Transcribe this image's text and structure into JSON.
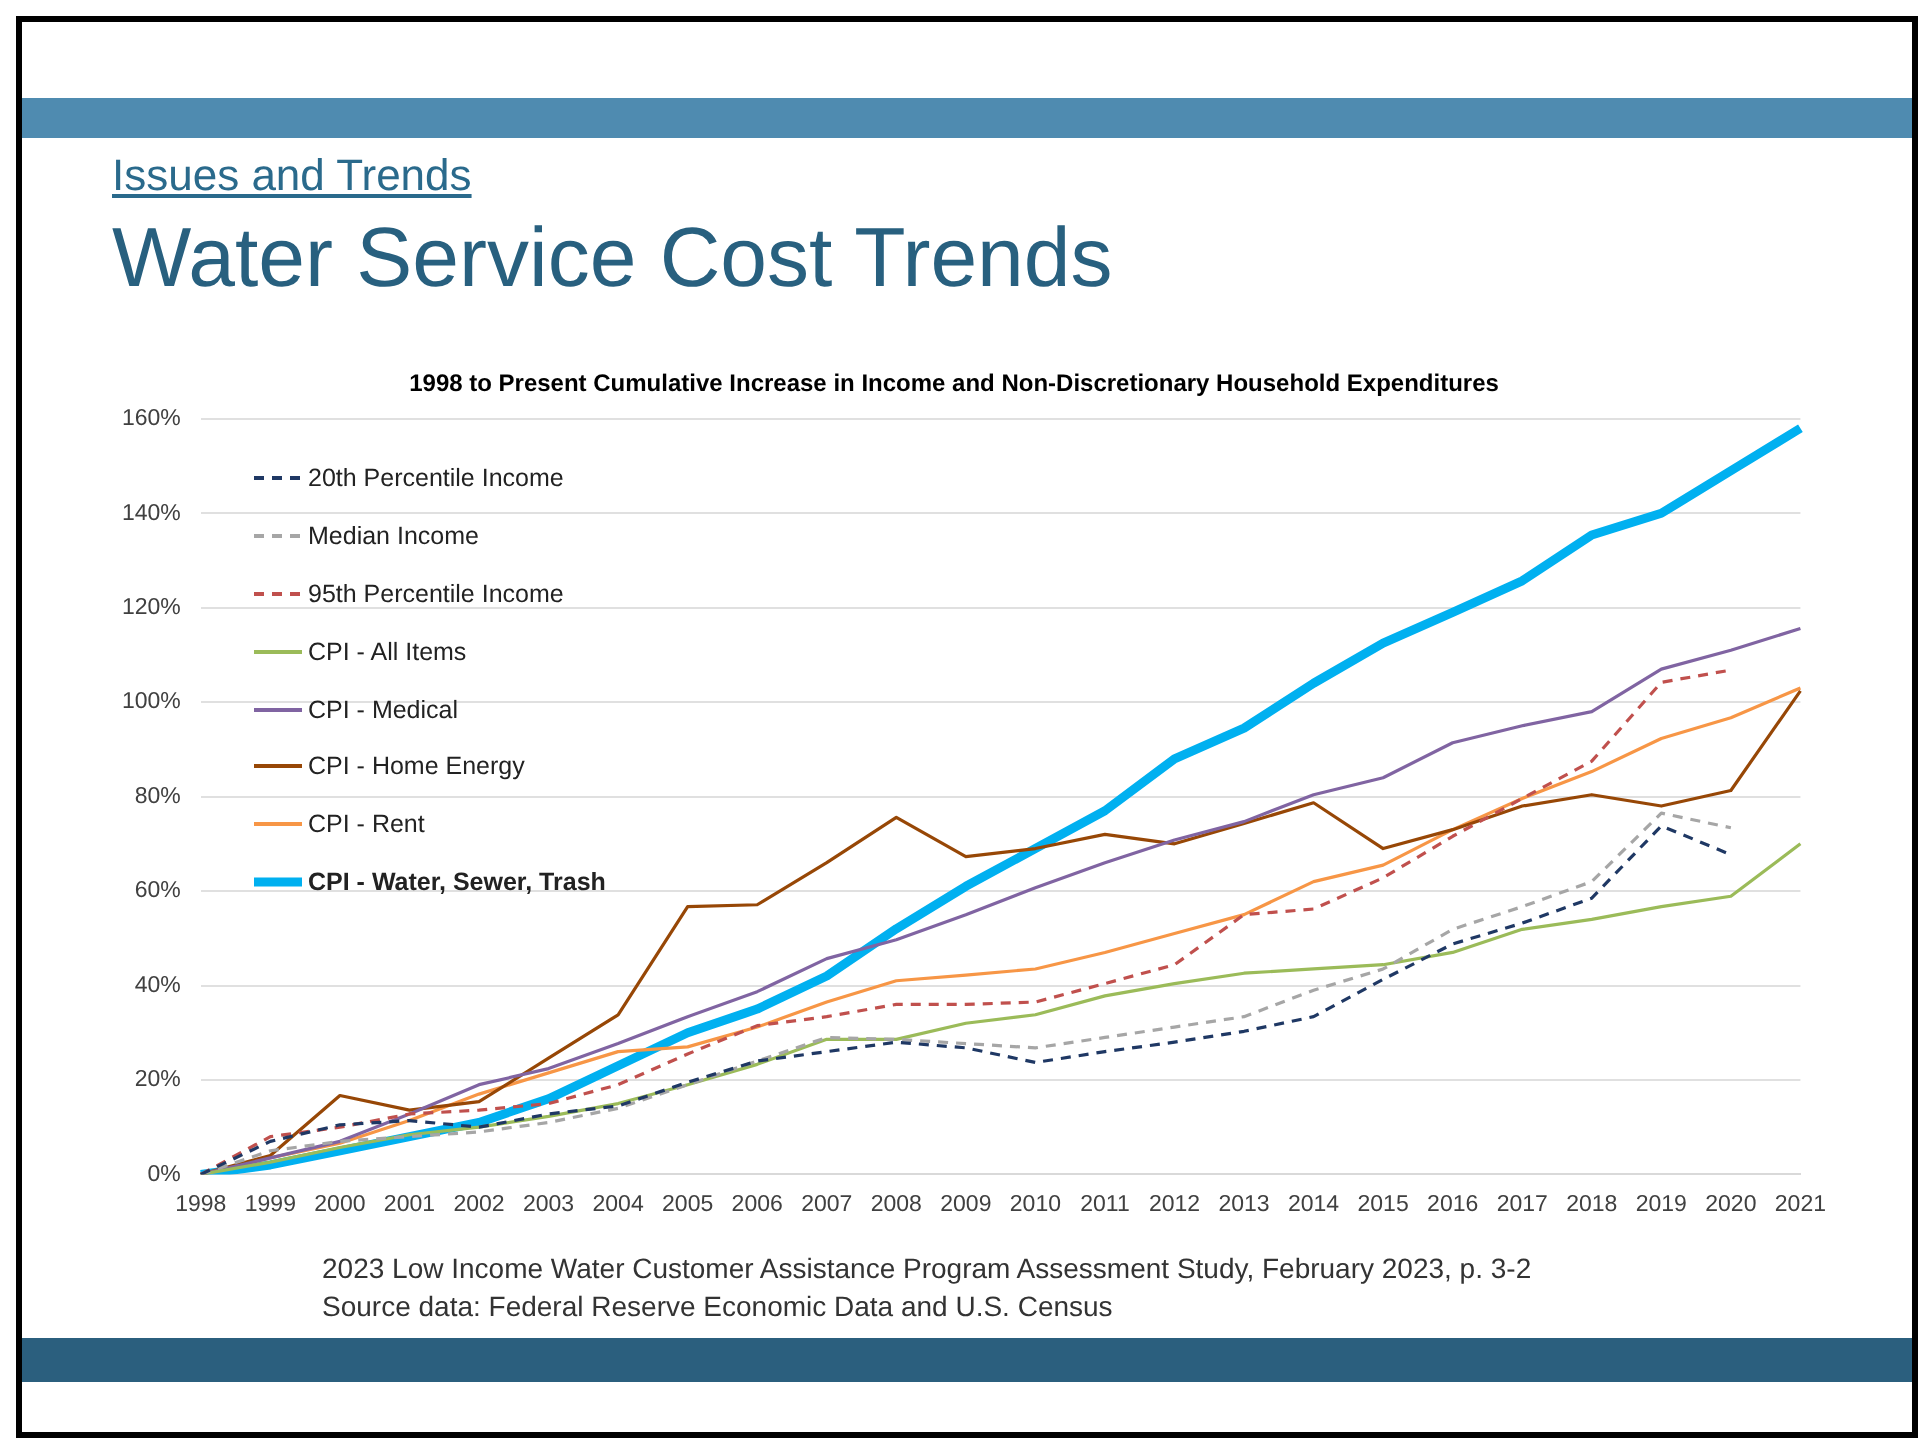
{
  "chart_data": {
    "type": "line",
    "title": "Water Service Cost Trends",
    "subtitle": "1998 to Present Cumulative Increase in Income and Non-Discretionary Household Expenditures",
    "annotations": [
      "Issues and Trends",
      "2023 Low Income Water Customer Assistance Program Assessment Study, February 2023, p. 3-2",
      "Source data: Federal Reserve Economic Data and U.S. Census"
    ],
    "categories": [
      "1998",
      "1999",
      "2000",
      "2001",
      "2002",
      "2003",
      "2004",
      "2005",
      "2006",
      "2007",
      "2008",
      "2009",
      "2010",
      "2011",
      "2012",
      "2013",
      "2014",
      "2015",
      "2016",
      "2017",
      "2018",
      "2019",
      "2020",
      "2021"
    ],
    "series": [
      {
        "name": "20th Percentile Income",
        "color": "#1f3864",
        "line_style": "dashed",
        "values": [
          0,
          7,
          10.5,
          11.4,
          10,
          12.8,
          14.5,
          19.5,
          24,
          26,
          28,
          26.8,
          23.7,
          26,
          28,
          30.3,
          33.4,
          41.3,
          48.8,
          53.2,
          58.5,
          73.8,
          67.7,
          null
        ]
      },
      {
        "name": "Median Income",
        "color": "#a6a6a6",
        "line_style": "dashed",
        "values": [
          0,
          5,
          7,
          8,
          9,
          11,
          14,
          19,
          24,
          29,
          28.6,
          27.7,
          26.8,
          29,
          31.2,
          33.4,
          39,
          43.5,
          51.9,
          56.7,
          62,
          76.5,
          73.4,
          null
        ]
      },
      {
        "name": "95th Percentile Income",
        "color": "#c0504d",
        "line_style": "dashed",
        "values": [
          0,
          8,
          10,
          12.8,
          13.6,
          15,
          19,
          25.5,
          31.5,
          33.4,
          36,
          36,
          36.5,
          40.4,
          44.4,
          55,
          56.2,
          62.8,
          71.6,
          79.6,
          87.5,
          104.2,
          106.8,
          null
        ]
      },
      {
        "name": "CPI - All Items",
        "color": "#9bbb59",
        "line_style": "solid",
        "values": [
          0,
          2.6,
          5.7,
          8.4,
          10,
          12.3,
          15,
          19,
          23.3,
          28.6,
          28.6,
          32,
          33.8,
          37.8,
          40.4,
          42.6,
          43.5,
          44.4,
          47,
          51.9,
          54,
          56.7,
          58.9,
          70
        ]
      },
      {
        "name": "CPI - Medical",
        "color": "#8064a2",
        "line_style": "solid",
        "values": [
          0,
          3.5,
          7,
          12.8,
          19,
          22.4,
          27.7,
          33.4,
          38.7,
          45.7,
          49.7,
          55,
          60.7,
          66,
          70.8,
          74.7,
          80.4,
          84,
          91.4,
          95,
          98,
          107,
          111,
          115.6
        ]
      },
      {
        "name": "CPI - Home Energy",
        "color": "#974706",
        "line_style": "solid",
        "values": [
          0,
          4,
          16.7,
          13.6,
          15.4,
          24.6,
          33.8,
          56.7,
          57.1,
          66,
          75.6,
          67.3,
          69,
          72,
          70,
          74.3,
          78.7,
          69,
          73,
          78,
          80.4,
          78,
          81.3,
          102.4
        ]
      },
      {
        "name": "CPI - Rent",
        "color": "#f79646",
        "line_style": "solid",
        "values": [
          0,
          3.5,
          6.6,
          11.4,
          17,
          21.5,
          26,
          27,
          31.2,
          36.5,
          41,
          42.2,
          43.5,
          47,
          51,
          55,
          62,
          65.5,
          73,
          79.6,
          85.3,
          92.3,
          96.7,
          103
        ]
      },
      {
        "name": "CPI - Water, Sewer, Trash",
        "color": "#00b0f0",
        "line_style": "solid",
        "values": [
          0,
          2,
          5,
          8,
          11,
          16,
          23,
          30,
          35,
          42,
          52,
          61,
          69,
          77,
          88,
          94.5,
          104,
          112.5,
          119,
          125.7,
          135.4,
          140,
          149,
          158
        ]
      }
    ],
    "ylim": [
      0,
      160
    ],
    "yticks": [
      {
        "value": 0,
        "label": "0%"
      },
      {
        "value": 20,
        "label": "20%"
      },
      {
        "value": 40,
        "label": "40%"
      },
      {
        "value": 60,
        "label": "60%"
      },
      {
        "value": 80,
        "label": "80%"
      },
      {
        "value": 100,
        "label": "100%"
      },
      {
        "value": 120,
        "label": "120%"
      },
      {
        "value": 140,
        "label": "140%"
      },
      {
        "value": 160,
        "label": "160%"
      }
    ],
    "grid": "y",
    "legend": "top left",
    "marker": "none"
  }
}
